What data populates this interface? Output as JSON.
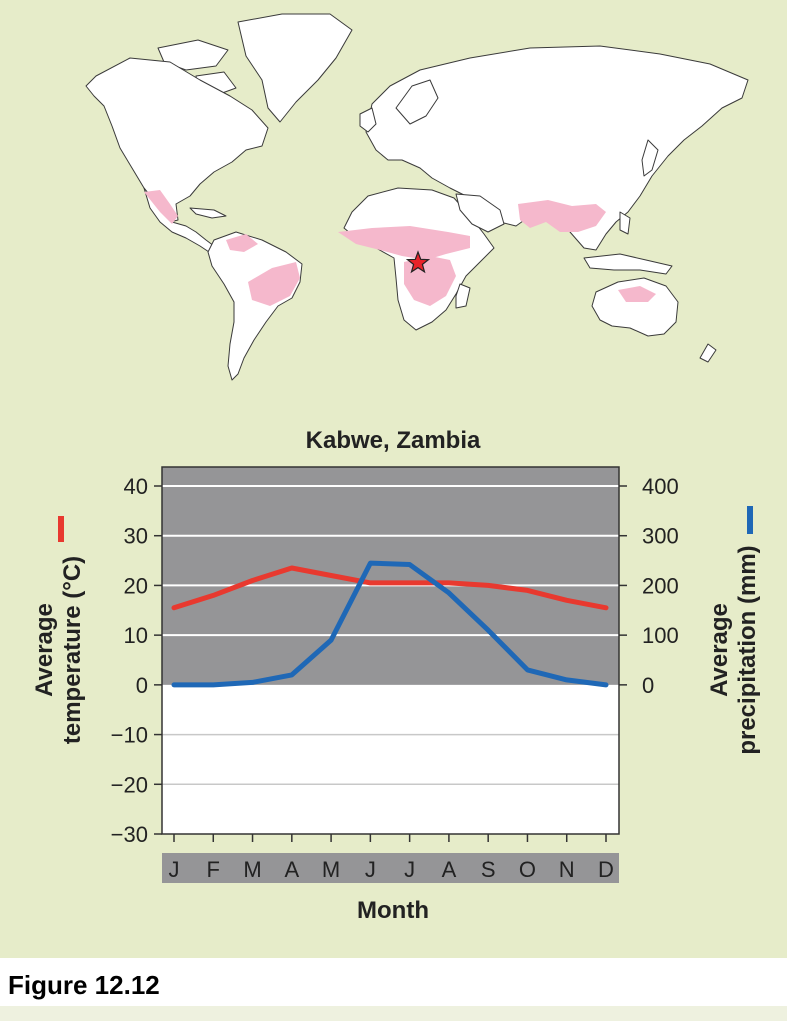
{
  "figure_caption": "Figure 12.12",
  "map": {
    "landmass_color": "#ffffff",
    "highlight_color": "#f5b8cc",
    "marker_color": "#e8232a",
    "background_color": "#e6ecc9"
  },
  "chart_data": {
    "type": "line",
    "title": "Kabwe, Zambia",
    "xlabel": "Month",
    "categories": [
      "J",
      "F",
      "M",
      "A",
      "M",
      "J",
      "J",
      "A",
      "S",
      "O",
      "N",
      "D"
    ],
    "y_left": {
      "label_line1": "Average",
      "label_line2": "temperature (°C)",
      "ylim": [
        -30,
        40
      ],
      "ticks": [
        "40",
        "30",
        "20",
        "10",
        "0",
        "−10",
        "−20",
        "−30"
      ]
    },
    "y_right": {
      "label_line1": "Average",
      "label_line2": "precipitation (mm)",
      "ylim": [
        -300,
        400
      ],
      "ticks": [
        "400",
        "300",
        "200",
        "100",
        "0"
      ]
    },
    "series": [
      {
        "axis": "left",
        "color": "#e8392f",
        "values": [
          15.5,
          18,
          21,
          23.5,
          22,
          20.5,
          20.5,
          20.5,
          20,
          19,
          17,
          15.5
        ]
      },
      {
        "axis": "right",
        "color": "#1f68b6",
        "values": [
          0,
          0,
          5,
          20,
          90,
          245,
          242,
          185,
          110,
          30,
          10,
          0
        ]
      }
    ],
    "shaded_region": {
      "from": 0,
      "to": 40,
      "color": "#959597"
    },
    "grid": true
  }
}
